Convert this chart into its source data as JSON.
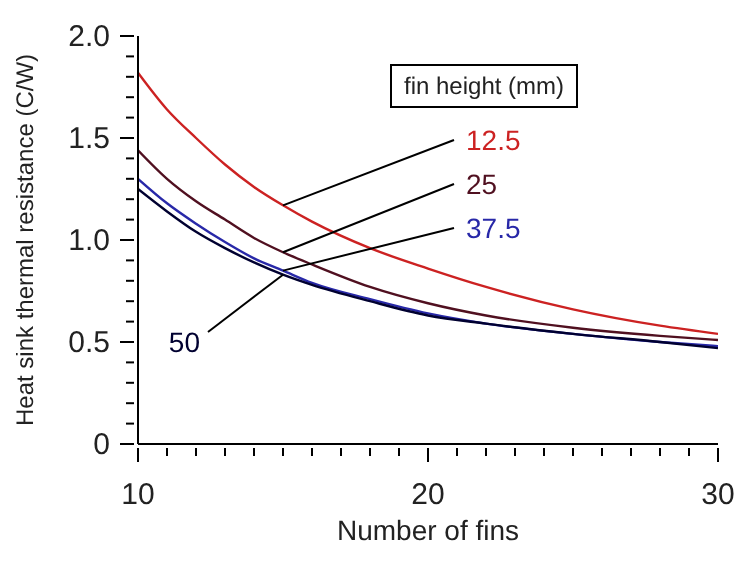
{
  "chart_data": {
    "type": "line",
    "xlabel": "Number of fins",
    "ylabel": "Heat sink thermal resistance  (C/W)",
    "legend_title": "fin height (mm)",
    "x": [
      10,
      11,
      12,
      13,
      14,
      15,
      16,
      18,
      20,
      22,
      25,
      28,
      30
    ],
    "series": [
      {
        "name": "12.5",
        "color": "#cc2222",
        "values": [
          1.82,
          1.64,
          1.5,
          1.37,
          1.26,
          1.17,
          1.09,
          0.96,
          0.86,
          0.77,
          0.66,
          0.58,
          0.54
        ]
      },
      {
        "name": "25",
        "color": "#501020",
        "values": [
          1.44,
          1.3,
          1.19,
          1.1,
          1.01,
          0.94,
          0.88,
          0.77,
          0.69,
          0.63,
          0.57,
          0.53,
          0.51
        ]
      },
      {
        "name": "37.5",
        "color": "#2828a8",
        "values": [
          1.3,
          1.18,
          1.08,
          0.99,
          0.91,
          0.85,
          0.79,
          0.71,
          0.64,
          0.59,
          0.54,
          0.5,
          0.48
        ]
      },
      {
        "name": "50",
        "color": "#000030",
        "values": [
          1.25,
          1.14,
          1.04,
          0.96,
          0.89,
          0.83,
          0.78,
          0.7,
          0.63,
          0.59,
          0.54,
          0.5,
          0.47
        ]
      }
    ],
    "xlim": [
      10,
      30
    ],
    "xticks": [
      10,
      {
        "value": 11,
        "label": null
      },
      {
        "value": 12,
        "label": null
      },
      {
        "value": 13,
        "label": null
      },
      {
        "value": 14,
        "label": null
      },
      {
        "value": 15,
        "label": null
      },
      {
        "value": 16,
        "label": null
      },
      {
        "value": 17,
        "label": null
      },
      {
        "value": 18,
        "label": null
      },
      {
        "value": 19,
        "label": null
      },
      20,
      {
        "value": 21,
        "label": null
      },
      {
        "value": 22,
        "label": null
      },
      {
        "value": 23,
        "label": null
      },
      {
        "value": 24,
        "label": null
      },
      {
        "value": 25,
        "label": null
      },
      {
        "value": 26,
        "label": null
      },
      {
        "value": 27,
        "label": null
      },
      {
        "value": 28,
        "label": null
      },
      {
        "value": 29,
        "label": null
      },
      30
    ],
    "ylim": [
      0,
      2
    ],
    "yticks": [
      0,
      {
        "value": 0.1,
        "label": null
      },
      {
        "value": 0.2,
        "label": null
      },
      {
        "value": 0.3,
        "label": null
      },
      {
        "value": 0.4,
        "label": null
      },
      0.5,
      {
        "value": 0.6,
        "label": null
      },
      {
        "value": 0.7,
        "label": null
      },
      {
        "value": 0.8,
        "label": null
      },
      {
        "value": 0.9,
        "label": null
      },
      {
        "value": 1,
        "label": "1.0"
      },
      {
        "value": 1.1,
        "label": null
      },
      {
        "value": 1.2,
        "label": null
      },
      {
        "value": 1.3,
        "label": null
      },
      {
        "value": 1.4,
        "label": null
      },
      1.5,
      {
        "value": 1.6,
        "label": null
      },
      {
        "value": 1.7,
        "label": null
      },
      {
        "value": 1.8,
        "label": null
      },
      {
        "value": 1.9,
        "label": null
      },
      {
        "value": 2,
        "label": "2.0"
      }
    ],
    "grid": false,
    "marker": "none",
    "line_style": "solid"
  }
}
